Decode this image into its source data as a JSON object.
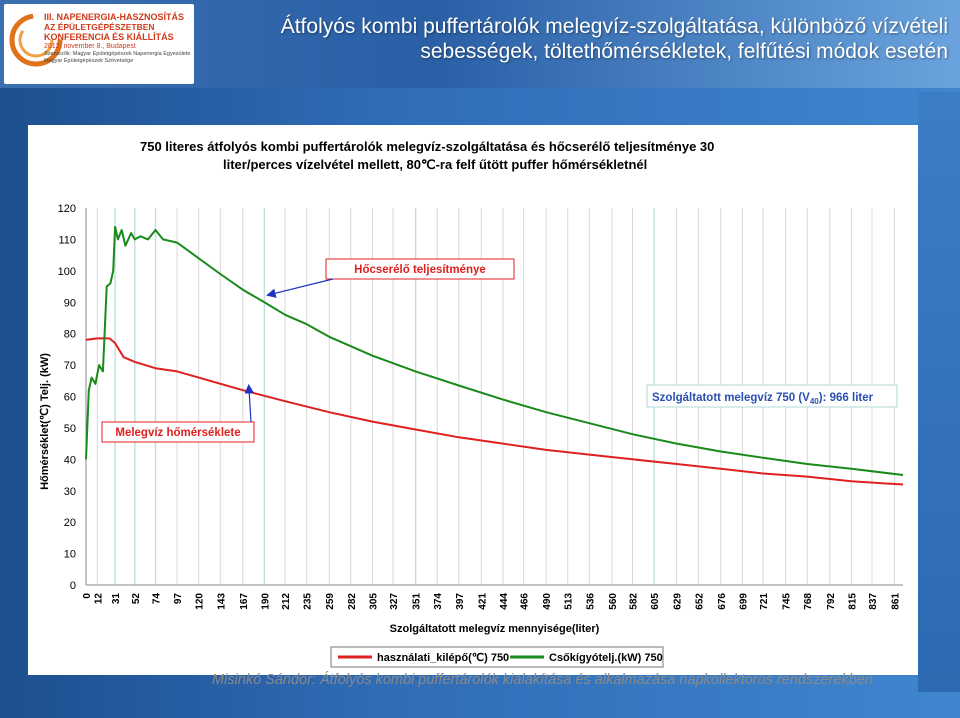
{
  "header": {
    "title": "Átfolyós kombi puffertárolók melegvíz-szolgáltatása, különböző vízvételi sebességek, töltethőmérsékletek, felfűtési módok esetén",
    "logo": {
      "line1": "III. NAPENERGIA-HASZNOSÍTÁS",
      "line2": "AZ ÉPÜLETGÉPÉSZETBEN",
      "line3": "KONFERENCIA ÉS KIÁLLÍTÁS",
      "line4": "2012. november 8., Budapest",
      "line5": "Szervezők: Magyar Épületgépészek Napenergia Egyesülete",
      "line6": "Magyar Épületgépészek Szövetsége"
    }
  },
  "footer": {
    "text": "Misinkó Sándor: Átfolyós kombi puffertárolók kialakítása és alkalmazása napkollektoros rendszerekben"
  },
  "chart_data": {
    "type": "line",
    "title": "750 literes átfolyós kombi puffertárolók melegvíz-szolgáltatása és hőcserélő teljesítménye 30 liter/perces vízelvétel mellett, 80℃-ra felf űtött puffer hőmérsékletnél",
    "xlabel": "Szolgáltatott melegvíz mennyisége(liter)",
    "ylabel": "Hőmérséklet(℃) Telj. (kW)",
    "ylim": [
      0,
      120
    ],
    "yticks": [
      0,
      10,
      20,
      30,
      40,
      50,
      60,
      70,
      80,
      90,
      100,
      110,
      120
    ],
    "xlim": [
      0,
      870
    ],
    "xticks": [
      0,
      12,
      31,
      52,
      74,
      97,
      120,
      143,
      167,
      190,
      212,
      235,
      259,
      282,
      305,
      327,
      351,
      374,
      397,
      421,
      444,
      466,
      490,
      513,
      536,
      560,
      582,
      605,
      629,
      652,
      676,
      699,
      721,
      745,
      768,
      792,
      815,
      837,
      861
    ],
    "grid": "x",
    "legend_position": "bottom",
    "series": [
      {
        "name": "használati_kilépő(℃) 750",
        "color": "#e02020",
        "x": [
          0,
          12,
          25,
          31,
          40,
          52,
          74,
          97,
          120,
          167,
          212,
          259,
          305,
          351,
          397,
          444,
          490,
          536,
          582,
          629,
          676,
          721,
          768,
          815,
          870
        ],
        "y": [
          78,
          78.5,
          78.5,
          77,
          72.5,
          71,
          69,
          68,
          66,
          62,
          58.5,
          55,
          52,
          49.5,
          47,
          45,
          43,
          41.5,
          40,
          38.5,
          37,
          35.5,
          34.5,
          33,
          32
        ]
      },
      {
        "name": "Csőkígyótelj.(kW) 750",
        "color": "#1a8a1a",
        "x": [
          0,
          3,
          6,
          10,
          14,
          18,
          22,
          26,
          29,
          31,
          34,
          38,
          42,
          48,
          52,
          58,
          66,
          74,
          82,
          97,
          120,
          143,
          167,
          190,
          212,
          235,
          259,
          282,
          305,
          351,
          397,
          444,
          490,
          536,
          582,
          629,
          676,
          721,
          768,
          815,
          870
        ],
        "y": [
          40,
          62,
          66,
          64,
          70,
          68,
          95,
          96,
          100,
          114,
          110,
          113,
          108,
          112,
          110,
          111,
          110,
          113,
          110,
          109,
          104,
          99,
          94,
          90,
          86,
          83,
          79,
          76,
          73,
          68,
          63.5,
          59,
          55,
          51.5,
          48,
          45,
          42.5,
          40.5,
          38.5,
          37,
          35
        ]
      }
    ],
    "annotations": [
      {
        "text": "Hőcserélő teljesítménye",
        "points_to_series": "Csőkígyótelj.(kW) 750",
        "x": 190,
        "y": 92
      },
      {
        "text": "Melegvíz hőmérséklete",
        "points_to_series": "használati_kilépő(℃) 750",
        "x": 167,
        "y": 62
      },
      {
        "text_main": "Szolgáltatott melegvíz 750 (V",
        "text_sub": "40",
        "text_end": "): 966 liter",
        "vline_x": 605
      }
    ],
    "vlines": [
      31,
      52,
      74,
      190,
      351,
      605
    ]
  }
}
